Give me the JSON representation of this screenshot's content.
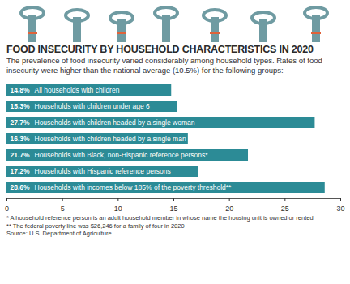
{
  "chart_data": {
    "type": "bar",
    "orientation": "horizontal",
    "title": "FOOD INSECURITY BY HOUSEHOLD CHARACTERISTICS IN 2020",
    "subtitle": "The prevalence of food insecurity varied considerably among household types. Rates of food insecurity were higher than the national average (10.5%) for the following groups:",
    "categories": [
      "All households with children",
      "Households with children under age 6",
      "Households with children headed by a single woman",
      "Households with children headed by a single man",
      "Households with Black, non-Hispanic reference persons*",
      "Households with Hispanic reference persons",
      "Households with incomes below 185% of the poverty threshold**"
    ],
    "values": [
      14.8,
      15.3,
      27.7,
      16.3,
      21.7,
      17.2,
      28.6
    ],
    "value_labels": [
      "14.8%",
      "15.3%",
      "27.7%",
      "16.3%",
      "21.7%",
      "17.2%",
      "28.6%"
    ],
    "data_labels": true,
    "color": "#2c8b96",
    "xlim": [
      0,
      30
    ],
    "xticks": [
      0,
      5,
      10,
      15,
      20,
      25,
      30
    ],
    "tick_labels": "x",
    "grid": false,
    "notes": [
      "* A household reference person is an adult household member in whose name the housing unit is owned or rented",
      "** The federal poverty line was $26,246 for a family of four in 2020"
    ],
    "source": "Source: U.S. Department of Agriculture"
  }
}
